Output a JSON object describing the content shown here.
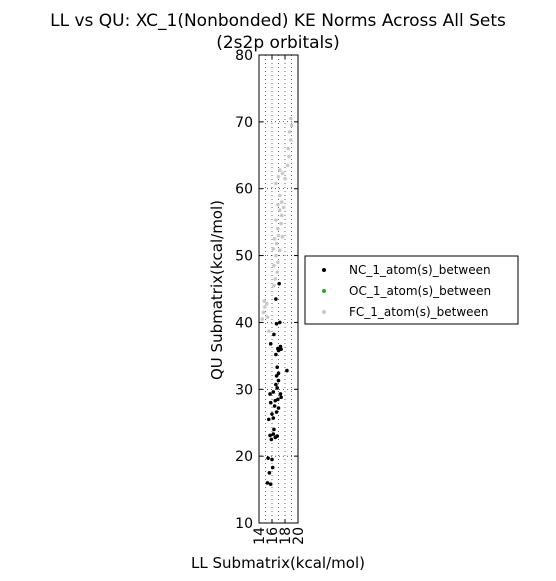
{
  "chart_data": {
    "type": "scatter",
    "title": "LL vs QU: XC_1(Nonbonded) KE Norms Across All Sets",
    "subtitle": "(2s2p orbitals)",
    "xlabel": "LL Submatrix(kcal/mol)",
    "ylabel": "QU Submatrix(kcal/mol)",
    "xlim": [
      14,
      20
    ],
    "ylim": [
      10,
      80
    ],
    "x_ticks": [
      "14",
      "16",
      "18",
      "20"
    ],
    "y_ticks": [
      "10",
      "20",
      "30",
      "40",
      "50",
      "60",
      "70",
      "80"
    ],
    "grid": true,
    "legend_position": "right-outside",
    "series": [
      {
        "name": "NC_1_atom(s)_between",
        "color": "#000000",
        "points": [
          [
            15.3,
            16.0
          ],
          [
            15.8,
            15.8
          ],
          [
            15.6,
            17.5
          ],
          [
            16.1,
            18.3
          ],
          [
            15.4,
            19.7
          ],
          [
            16.0,
            19.5
          ],
          [
            15.9,
            22.5
          ],
          [
            16.5,
            22.8
          ],
          [
            16.2,
            23.3
          ],
          [
            15.7,
            23.1
          ],
          [
            16.8,
            23.0
          ],
          [
            16.3,
            24.0
          ],
          [
            15.5,
            25.5
          ],
          [
            16.2,
            25.7
          ],
          [
            16.0,
            26.3
          ],
          [
            16.7,
            26.6
          ],
          [
            17.0,
            27.2
          ],
          [
            16.4,
            27.5
          ],
          [
            15.8,
            28.0
          ],
          [
            16.5,
            28.3
          ],
          [
            16.9,
            28.5
          ],
          [
            17.4,
            28.8
          ],
          [
            15.7,
            29.3
          ],
          [
            16.2,
            29.6
          ],
          [
            17.3,
            29.3
          ],
          [
            16.8,
            30.2
          ],
          [
            16.6,
            30.7
          ],
          [
            17.0,
            31.3
          ],
          [
            16.7,
            32.0
          ],
          [
            17.0,
            32.4
          ],
          [
            18.3,
            32.8
          ],
          [
            16.8,
            33.3
          ],
          [
            16.6,
            35.2
          ],
          [
            17.0,
            35.8
          ],
          [
            17.4,
            36.0
          ],
          [
            16.9,
            36.1
          ],
          [
            15.8,
            36.8
          ],
          [
            17.3,
            36.4
          ],
          [
            16.3,
            38.2
          ],
          [
            16.7,
            39.8
          ],
          [
            17.2,
            40.0
          ],
          [
            16.6,
            43.5
          ],
          [
            17.1,
            45.8
          ]
        ]
      },
      {
        "name": "OC_1_atom(s)_between",
        "color": "#22aa22",
        "points": []
      },
      {
        "name": "FC_1_atom(s)_between",
        "color": "#c8c8c8",
        "points": [
          [
            14.5,
            40.5
          ],
          [
            14.7,
            41.5
          ],
          [
            14.9,
            42.3
          ],
          [
            14.8,
            43.2
          ],
          [
            15.2,
            42.8
          ],
          [
            15.5,
            38.7
          ],
          [
            15.3,
            40.8
          ],
          [
            16.3,
            45.5
          ],
          [
            16.5,
            46.5
          ],
          [
            16.8,
            47.5
          ],
          [
            16.3,
            48.5
          ],
          [
            16.9,
            49.0
          ],
          [
            16.6,
            50.0
          ],
          [
            16.2,
            51.0
          ],
          [
            17.2,
            50.8
          ],
          [
            16.7,
            51.8
          ],
          [
            16.4,
            52.5
          ],
          [
            17.0,
            53.0
          ],
          [
            17.6,
            52.8
          ],
          [
            16.9,
            54.0
          ],
          [
            17.4,
            54.8
          ],
          [
            16.6,
            55.3
          ],
          [
            17.5,
            56.0
          ],
          [
            17.2,
            56.8
          ],
          [
            17.8,
            57.2
          ],
          [
            17.5,
            58.0
          ],
          [
            17.2,
            59.0
          ],
          [
            16.6,
            60.8
          ],
          [
            17.0,
            61.8
          ],
          [
            18.0,
            61.5
          ],
          [
            17.6,
            62.3
          ],
          [
            18.4,
            63.5
          ],
          [
            18.6,
            64.8
          ],
          [
            18.5,
            66.0
          ],
          [
            18.9,
            67.3
          ],
          [
            18.7,
            68.5
          ],
          [
            19.0,
            69.5
          ],
          [
            18.9,
            70.5
          ],
          [
            17.2,
            62.8
          ],
          [
            16.9,
            57.6
          ]
        ]
      }
    ]
  }
}
